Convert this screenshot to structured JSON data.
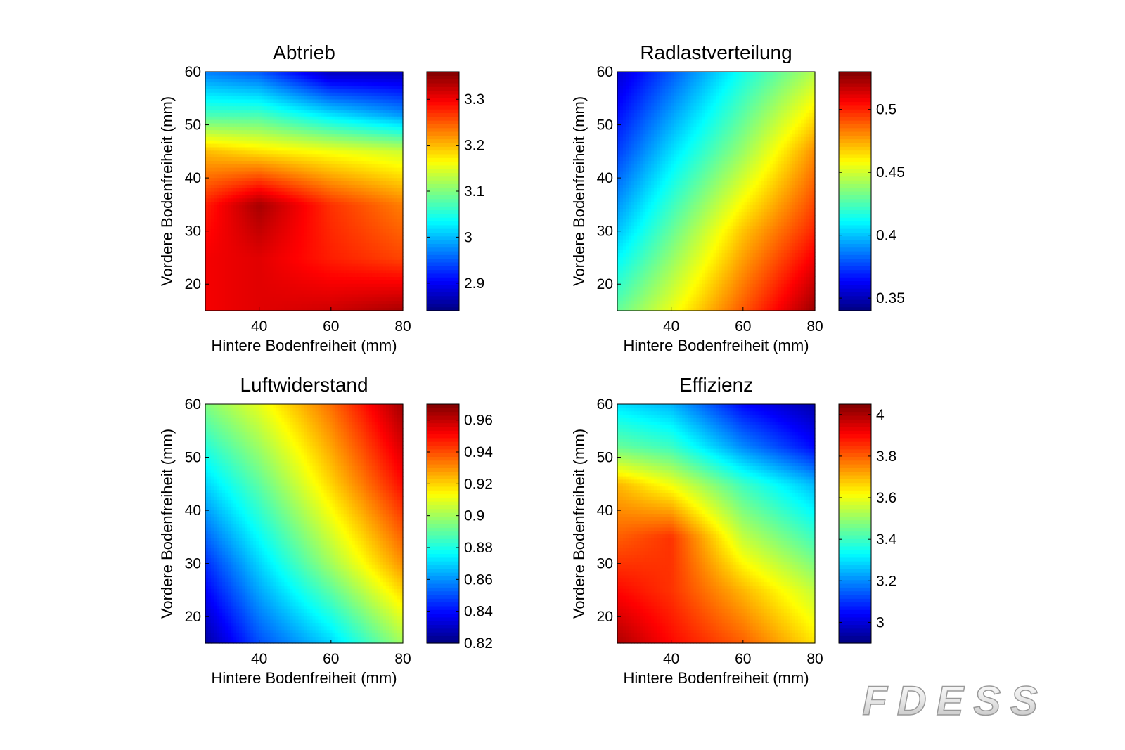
{
  "colormap": "jet",
  "logo_text": "FDESS",
  "chart_data": [
    {
      "type": "heatmap",
      "title": "Abtrieb",
      "xlabel": "Hintere Bodenfreiheit (mm)",
      "ylabel": "Vordere Bodenfreiheit (mm)",
      "xlim": [
        25,
        80
      ],
      "ylim": [
        15,
        60
      ],
      "xticks": [
        40,
        60,
        80
      ],
      "yticks": [
        20,
        30,
        40,
        50,
        60
      ],
      "clim": [
        2.84,
        3.36
      ],
      "cticks": [
        2.9,
        3,
        3.1,
        3.2,
        3.3
      ],
      "grid": false,
      "colorbar": "right",
      "x": [
        25,
        40,
        60,
        80
      ],
      "y": [
        15,
        25,
        35,
        45,
        52,
        60
      ],
      "z": [
        [
          3.3,
          3.31,
          3.32,
          3.34
        ],
        [
          3.3,
          3.31,
          3.28,
          3.26
        ],
        [
          3.28,
          3.34,
          3.27,
          3.23
        ],
        [
          3.2,
          3.18,
          3.16,
          3.14
        ],
        [
          3.07,
          3.07,
          3.02,
          2.98
        ],
        [
          2.97,
          2.95,
          2.87,
          2.87
        ]
      ]
    },
    {
      "type": "heatmap",
      "title": "Radlastverteilung",
      "xlabel": "Hintere Bodenfreiheit (mm)",
      "ylabel": "Vordere Bodenfreiheit (mm)",
      "xlim": [
        25,
        80
      ],
      "ylim": [
        15,
        60
      ],
      "xticks": [
        40,
        60,
        80
      ],
      "yticks": [
        20,
        30,
        40,
        50,
        60
      ],
      "clim": [
        0.34,
        0.53
      ],
      "cticks": [
        0.35,
        0.4,
        0.45,
        0.5
      ],
      "grid": false,
      "colorbar": "right",
      "x": [
        25,
        40,
        60,
        80
      ],
      "y": [
        15,
        30,
        45,
        60
      ],
      "z": [
        [
          0.43,
          0.455,
          0.49,
          0.525
        ],
        [
          0.4,
          0.43,
          0.47,
          0.5
        ],
        [
          0.375,
          0.405,
          0.44,
          0.48
        ],
        [
          0.355,
          0.38,
          0.415,
          0.445
        ]
      ]
    },
    {
      "type": "heatmap",
      "title": "Luftwiderstand",
      "xlabel": "Hintere Bodenfreiheit (mm)",
      "ylabel": "Vordere Bodenfreiheit (mm)",
      "xlim": [
        25,
        80
      ],
      "ylim": [
        15,
        60
      ],
      "xticks": [
        40,
        60,
        80
      ],
      "yticks": [
        20,
        30,
        40,
        50,
        60
      ],
      "clim": [
        0.82,
        0.97
      ],
      "cticks": [
        0.82,
        0.84,
        0.86,
        0.88,
        0.9,
        0.92,
        0.94,
        0.96
      ],
      "grid": false,
      "colorbar": "right",
      "x": [
        25,
        40,
        60,
        80
      ],
      "y": [
        15,
        30,
        45,
        60
      ],
      "z": [
        [
          0.825,
          0.85,
          0.87,
          0.9
        ],
        [
          0.845,
          0.87,
          0.9,
          0.93
        ],
        [
          0.87,
          0.89,
          0.92,
          0.95
        ],
        [
          0.895,
          0.91,
          0.935,
          0.965
        ]
      ]
    },
    {
      "type": "heatmap",
      "title": "Effizienz",
      "xlabel": "Hintere Bodenfreiheit (mm)",
      "ylabel": "Vordere Bodenfreiheit (mm)",
      "xlim": [
        25,
        80
      ],
      "ylim": [
        15,
        60
      ],
      "xticks": [
        40,
        60,
        80
      ],
      "yticks": [
        20,
        30,
        40,
        50,
        60
      ],
      "clim": [
        2.9,
        4.05
      ],
      "cticks": [
        3,
        3.2,
        3.4,
        3.6,
        3.8,
        4
      ],
      "grid": false,
      "colorbar": "right",
      "x": [
        25,
        40,
        60,
        80
      ],
      "y": [
        15,
        25,
        35,
        45,
        52,
        60
      ],
      "z": [
        [
          4.0,
          3.9,
          3.8,
          3.65
        ],
        [
          3.9,
          3.85,
          3.7,
          3.55
        ],
        [
          3.8,
          3.85,
          3.55,
          3.4
        ],
        [
          3.7,
          3.6,
          3.4,
          3.25
        ],
        [
          3.45,
          3.4,
          3.2,
          3.05
        ],
        [
          3.3,
          3.25,
          3.05,
          2.95
        ]
      ]
    }
  ]
}
